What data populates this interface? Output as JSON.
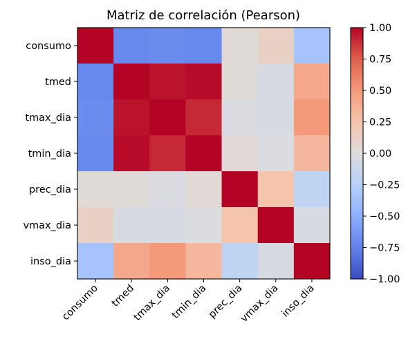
{
  "chart_data": {
    "type": "heatmap",
    "title": "Matriz de correlación (Pearson)",
    "variables": [
      "consumo",
      "tmed",
      "tmax_dia",
      "tmin_dia",
      "prec_dia",
      "vmax_dia",
      "inso_dia"
    ],
    "matrix": [
      [
        1.0,
        -0.72,
        -0.7,
        -0.72,
        0.03,
        0.13,
        -0.35
      ],
      [
        -0.72,
        1.0,
        0.96,
        0.98,
        0.02,
        -0.04,
        0.42
      ],
      [
        -0.7,
        0.96,
        1.0,
        0.9,
        -0.03,
        -0.05,
        0.5
      ],
      [
        -0.72,
        0.98,
        0.9,
        1.0,
        0.04,
        -0.02,
        0.33
      ],
      [
        0.03,
        0.02,
        -0.03,
        0.04,
        1.0,
        0.25,
        -0.2
      ],
      [
        0.13,
        -0.04,
        -0.05,
        -0.02,
        0.25,
        1.0,
        -0.05
      ],
      [
        -0.35,
        0.42,
        0.5,
        0.33,
        -0.2,
        -0.05,
        1.0
      ]
    ],
    "colormap": "coolwarm",
    "vmin": -1.0,
    "vmax": 1.0,
    "colorbar_ticks": [
      "1.00",
      "0.75",
      "0.50",
      "0.25",
      "0.00",
      "−0.25",
      "−0.50",
      "−0.75",
      "−1.00"
    ],
    "colorbar_tick_values": [
      1.0,
      0.75,
      0.5,
      0.25,
      0.0,
      -0.25,
      -0.5,
      -0.75,
      -1.0
    ],
    "grid": false
  }
}
